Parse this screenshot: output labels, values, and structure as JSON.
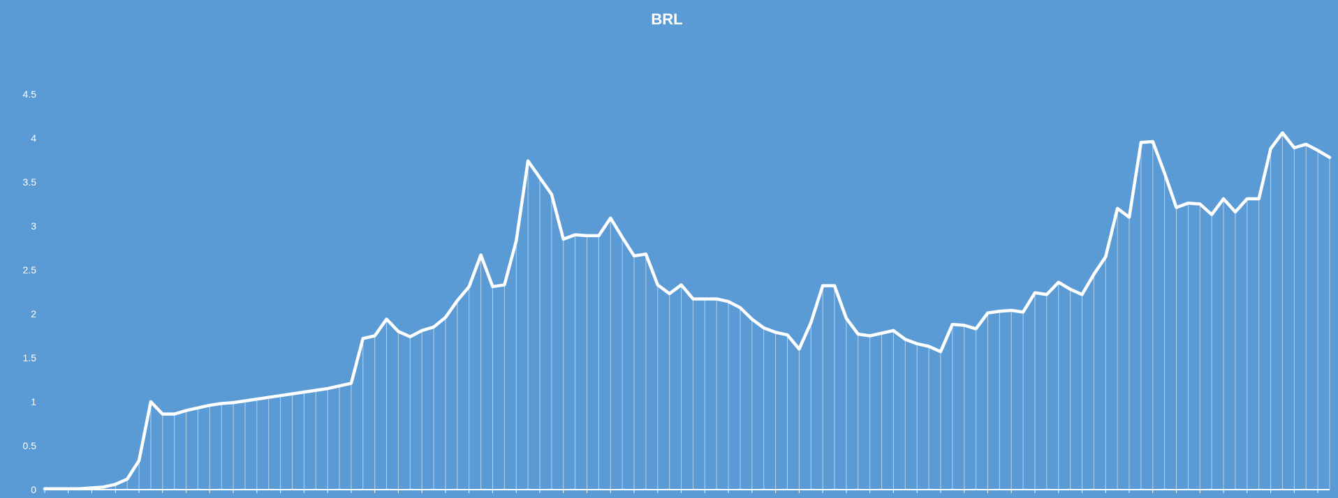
{
  "chart_data": {
    "type": "line",
    "title": "BRL",
    "xlabel": "",
    "ylabel": "",
    "ylim": [
      0,
      4.5
    ],
    "y_ticks": [
      "0",
      "0.5",
      "1",
      "1.5",
      "2",
      "2.5",
      "3",
      "3.5",
      "4",
      "4.5"
    ],
    "grid": false,
    "drop_lines": true,
    "line_color": "#ffffff",
    "background": "#5b9bd5",
    "series": [
      {
        "values": [
          0.01,
          0.01,
          0.01,
          0.01,
          0.02,
          0.03,
          0.06,
          0.12,
          0.33,
          1.0,
          0.86,
          0.86,
          0.9,
          0.93,
          0.96,
          0.98,
          0.99,
          1.01,
          1.03,
          1.05,
          1.07,
          1.09,
          1.11,
          1.13,
          1.15,
          1.18,
          1.21,
          1.72,
          1.75,
          1.94,
          1.8,
          1.74,
          1.81,
          1.85,
          1.96,
          2.15,
          2.31,
          2.67,
          2.31,
          2.33,
          2.83,
          3.74,
          3.55,
          3.36,
          2.85,
          2.9,
          2.89,
          2.89,
          3.09,
          2.87,
          2.66,
          2.68,
          2.33,
          2.23,
          2.33,
          2.17,
          2.17,
          2.17,
          2.14,
          2.07,
          1.94,
          1.84,
          1.79,
          1.76,
          1.6,
          1.9,
          2.32,
          2.32,
          1.95,
          1.77,
          1.75,
          1.78,
          1.81,
          1.71,
          1.66,
          1.63,
          1.57,
          1.88,
          1.87,
          1.83,
          2.01,
          2.03,
          2.04,
          2.02,
          2.24,
          2.22,
          2.36,
          2.28,
          2.22,
          2.45,
          2.65,
          3.2,
          3.1,
          3.95,
          3.96,
          3.6,
          3.21,
          3.26,
          3.25,
          3.13,
          3.31,
          3.16,
          3.31,
          3.31,
          3.88,
          4.06,
          3.89,
          3.93,
          3.86,
          3.78
        ]
      }
    ]
  }
}
